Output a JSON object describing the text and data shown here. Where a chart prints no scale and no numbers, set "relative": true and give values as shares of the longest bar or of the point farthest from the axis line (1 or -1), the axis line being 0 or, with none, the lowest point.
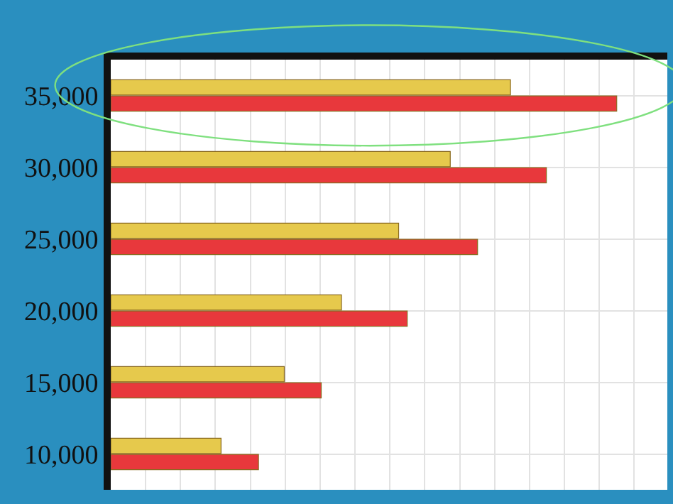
{
  "chart_data": {
    "type": "bar",
    "orientation": "horizontal",
    "relative": true,
    "grid": true,
    "tick_labels": "y",
    "legend": false,
    "categories": [
      "35,000",
      "30,000",
      "25,000",
      "20,000",
      "15,000",
      "10,000"
    ],
    "series": [
      {
        "color": "#e6c94c",
        "values": [
          0.79,
          0.671,
          0.569,
          0.456,
          0.343,
          0.218
        ]
      },
      {
        "color": "#e8383c",
        "values": [
          1,
          0.861,
          0.725,
          0.586,
          0.416,
          0.292
        ]
      }
    ]
  }
}
